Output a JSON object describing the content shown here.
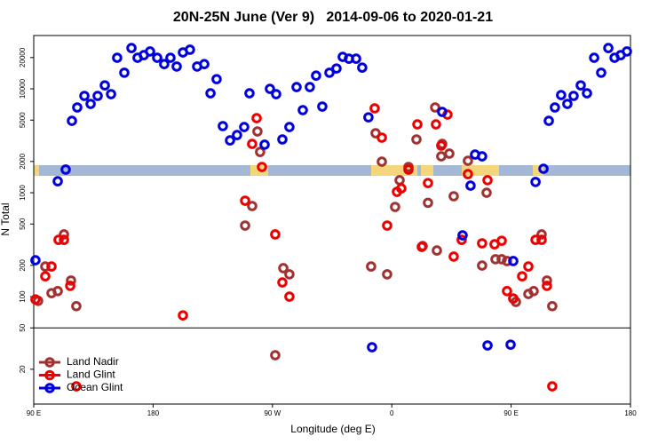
{
  "chart_data": {
    "type": "scatter",
    "title": "20N-25N June (Ver 9)   2014-09-06 to 2020-01-21",
    "x_label": "Longitude (deg E)",
    "y_label": "N Total",
    "xlim": [
      90,
      540
    ],
    "xticks": [
      {
        "value": 90,
        "label": "90 E"
      },
      {
        "value": 180,
        "label": "180"
      },
      {
        "value": 270,
        "label": "90 W"
      },
      {
        "value": 360,
        "label": "0"
      },
      {
        "value": 450,
        "label": "90 E"
      },
      {
        "value": 540,
        "label": "180"
      }
    ],
    "ylim": [
      9.25,
      32600
    ],
    "log_y": true,
    "yticks": [
      20,
      50,
      100,
      200,
      500,
      1000,
      2000,
      5000,
      10000,
      20000
    ],
    "hline": 50,
    "legend": "bottom-left",
    "series": [
      {
        "name": "Land Nadir",
        "color": "#a03232",
        "x": [
          93.3,
          98.7,
          103.4,
          108.1,
          112.8,
          118.1,
          122.1,
          249.4,
          254.7,
          258.7,
          260.7,
          272.1,
          278.2,
          282.8,
          344.4,
          347.8,
          352.5,
          356.5,
          362.5,
          365.9,
          372.6,
          378.6,
          383.3,
          387.3,
          392.7,
          394.0,
          397.3,
          398.0,
          403.4,
          406.7,
          417.4,
          428.1,
          431.5,
          438.2,
          442.9,
          446.9,
          451.6,
          453.6,
          463.0,
          467.0,
          473.0,
          477.0,
          481.0
        ],
        "values": [
          91,
          195,
          108,
          113,
          397,
          143,
          81,
          483,
          745,
          3890,
          2470,
          27.3,
          188,
          164,
          195,
          3740,
          1990,
          164,
          730,
          1320,
          1770,
          3260,
          307,
          800,
          6620,
          278,
          2240,
          2950,
          2380,
          925,
          2030,
          199,
          1000,
          229,
          229,
          220,
          96,
          89,
          106,
          113,
          397,
          143,
          81
        ]
      },
      {
        "name": "Land Glint",
        "color": "#ee0000",
        "x": [
          91.3,
          98.7,
          103.4,
          108.7,
          112.8,
          117.5,
          122.1,
          202.5,
          249.4,
          258.1,
          254.7,
          262.1,
          272.1,
          277.5,
          282.8,
          347.1,
          352.5,
          356.5,
          363.9,
          367.2,
          372.6,
          379.3,
          382.6,
          387.3,
          393.3,
          397.3,
          402.0,
          406.7,
          412.7,
          417.4,
          428.1,
          432.2,
          437.5,
          442.9,
          446.9,
          451.6,
          458.3,
          463.0,
          468.4,
          473.0,
          477.0,
          481.0
        ],
        "values": [
          94,
          157,
          195,
          352,
          352,
          127,
          13.7,
          66,
          838,
          5220,
          2950,
          1770,
          397,
          137,
          100,
          6490,
          3390,
          483,
          1020,
          1100,
          1670,
          4550,
          301,
          1240,
          4550,
          2840,
          5650,
          243,
          352,
          1510,
          326,
          1320,
          319,
          345,
          113,
          96,
          157,
          195,
          352,
          352,
          127,
          13.7
        ]
      },
      {
        "name": "Ocean Glint",
        "color": "#0000dd",
        "x": [
          91.3,
          108.1,
          114.1,
          118.8,
          122.8,
          128.2,
          132.9,
          138.2,
          143.6,
          148.3,
          152.9,
          158.3,
          163.7,
          168.3,
          173.0,
          177.7,
          183.1,
          188.4,
          193.1,
          197.8,
          202.5,
          207.8,
          213.2,
          218.6,
          223.3,
          227.9,
          232.6,
          238.0,
          243.3,
          248.7,
          252.7,
          264.1,
          268.1,
          272.8,
          277.5,
          282.8,
          288.2,
          292.9,
          298.2,
          302.9,
          307.6,
          313.0,
          318.3,
          323.0,
          327.7,
          333.1,
          337.7,
          342.4,
          345.1,
          398.0,
          413.4,
          419.4,
          422.8,
          428.1,
          432.2,
          449.6,
          451.6,
          468.4,
          474.4,
          478.4,
          483.0,
          487.7,
          492.4,
          497.1,
          502.5,
          507.2,
          512.6,
          517.9,
          523.3,
          528.0,
          532.6,
          537.3
        ],
        "values": [
          224,
          1290,
          1670,
          4920,
          6620,
          8550,
          7160,
          8550,
          10800,
          8890,
          19900,
          14300,
          24700,
          19900,
          21100,
          22900,
          19900,
          17300,
          19900,
          16400,
          22400,
          23800,
          16400,
          17300,
          9060,
          12400,
          4380,
          3190,
          3590,
          4290,
          9060,
          2900,
          10000,
          8890,
          3260,
          4290,
          10400,
          6240,
          10400,
          13400,
          6750,
          14300,
          15700,
          20300,
          19500,
          19500,
          16000,
          5320,
          32.6,
          6000,
          389,
          1170,
          2330,
          2240,
          33.9,
          34.5,
          220,
          1270,
          1700,
          4920,
          6620,
          8710,
          7160,
          8550,
          10800,
          9060,
          19900,
          14300,
          24700,
          19900,
          21100,
          22900
        ]
      }
    ]
  }
}
